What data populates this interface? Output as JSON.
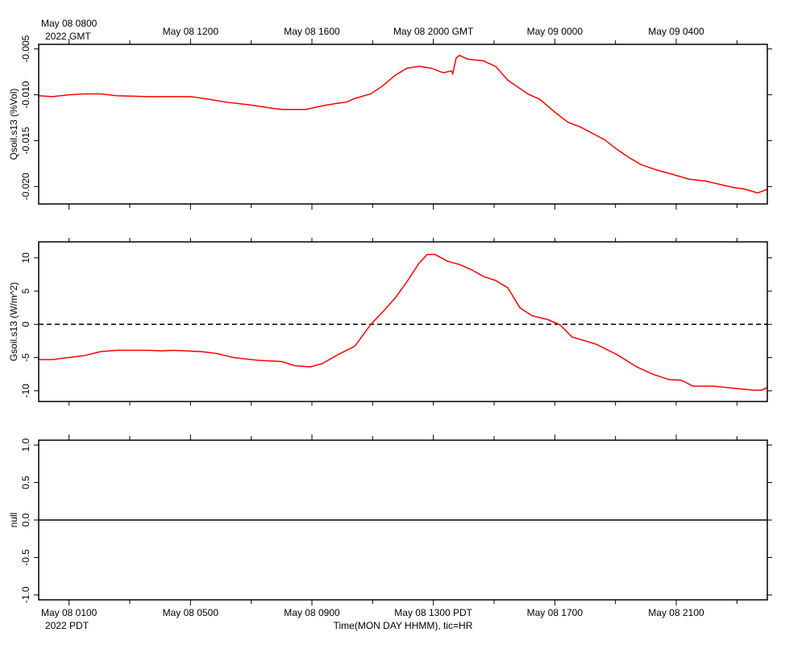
{
  "chart_data": [
    {
      "type": "line",
      "xlim": [
        7,
        31
      ],
      "ylim": [
        -0.0219,
        -0.0045
      ],
      "ylabel": "Qsoil.s13 (%Vol)",
      "corner_label": "2022 GMT",
      "xticks_side": "top",
      "xticks": [
        {
          "value": 8,
          "label": "May 08 0800"
        },
        {
          "value": 12,
          "label": "May 08 1200"
        },
        {
          "value": 16,
          "label": "May 08 1600"
        },
        {
          "value": 20,
          "label": "May 08 2000 GMT"
        },
        {
          "value": 24,
          "label": "May 09 0000"
        },
        {
          "value": 28,
          "label": "May 09 0400"
        }
      ],
      "xminorticks": [
        10,
        14,
        18,
        22,
        26,
        30
      ],
      "yticks": [
        {
          "value": -0.005,
          "label": "-0.005"
        },
        {
          "value": -0.01,
          "label": "-0.010"
        },
        {
          "value": -0.015,
          "label": "-0.015"
        },
        {
          "value": -0.02,
          "label": "-0.020"
        }
      ],
      "x": [
        7.0,
        7.45,
        7.98,
        8.51,
        9.04,
        9.57,
        10.64,
        12.02,
        12.63,
        13.16,
        13.96,
        14.75,
        15.02,
        15.81,
        16.34,
        16.88,
        17.14,
        17.41,
        17.94,
        18.34,
        18.73,
        19.13,
        19.53,
        19.93,
        20.33,
        20.59,
        20.64,
        20.75,
        20.86,
        21.12,
        21.65,
        22.05,
        22.45,
        23.11,
        23.51,
        24.04,
        24.44,
        24.84,
        25.24,
        25.64,
        26.03,
        26.43,
        26.83,
        27.36,
        28.02,
        28.42,
        28.95,
        29.48,
        29.88,
        30.28,
        30.68,
        31.0
      ],
      "series": [
        {
          "color": "#ff0000",
          "values": [
            -0.0101,
            -0.0102,
            -0.01,
            -0.0099,
            -0.0099,
            -0.0101,
            -0.0102,
            -0.0102,
            -0.0105,
            -0.0108,
            -0.0111,
            -0.0115,
            -0.0116,
            -0.0116,
            -0.0112,
            -0.0109,
            -0.0108,
            -0.0104,
            -0.0099,
            -0.009,
            -0.0079,
            -0.0071,
            -0.0069,
            -0.0071,
            -0.0076,
            -0.0074,
            -0.0077,
            -0.006,
            -0.0057,
            -0.0061,
            -0.0063,
            -0.0069,
            -0.0084,
            -0.0099,
            -0.0105,
            -0.012,
            -0.013,
            -0.0135,
            -0.0142,
            -0.0149,
            -0.0159,
            -0.0168,
            -0.0176,
            -0.0182,
            -0.0188,
            -0.0192,
            -0.0194,
            -0.0198,
            -0.0201,
            -0.0203,
            -0.0207,
            -0.0203
          ]
        }
      ]
    },
    {
      "type": "line",
      "xlim": [
        7,
        31
      ],
      "ylim": [
        -11.6,
        12.4
      ],
      "ylabel": "Gsoil.s13 (W/m^2)",
      "xminorticks": [
        8,
        10,
        12,
        14,
        16,
        18,
        20,
        22,
        24,
        26,
        28,
        30
      ],
      "yticks": [
        10,
        5,
        0,
        -5,
        -10
      ],
      "reference_line": {
        "value": 0,
        "style": "dashed"
      },
      "x": [
        7.0,
        7.45,
        7.98,
        8.51,
        9.04,
        9.57,
        10.64,
        11.04,
        11.43,
        12.36,
        12.89,
        13.42,
        14.22,
        15.02,
        15.42,
        15.95,
        16.34,
        16.88,
        17.41,
        17.94,
        18.34,
        18.73,
        19.13,
        19.53,
        19.8,
        20.06,
        20.46,
        20.86,
        21.26,
        21.65,
        22.05,
        22.45,
        22.85,
        23.25,
        23.78,
        24.18,
        24.57,
        25.37,
        26.03,
        26.7,
        27.23,
        27.76,
        28.16,
        28.56,
        29.22,
        29.88,
        30.55,
        30.81,
        31.0
      ],
      "series": [
        {
          "color": "#ff0000",
          "values": [
            -5.3,
            -5.3,
            -5.0,
            -4.7,
            -4.1,
            -3.9,
            -3.9,
            -4.0,
            -3.9,
            -4.1,
            -4.4,
            -5.0,
            -5.4,
            -5.6,
            -6.2,
            -6.4,
            -5.9,
            -4.5,
            -3.3,
            0.0,
            1.9,
            3.9,
            6.4,
            9.2,
            10.5,
            10.5,
            9.5,
            9.0,
            8.2,
            7.2,
            6.6,
            5.5,
            2.5,
            1.3,
            0.7,
            -0.1,
            -1.9,
            -3.0,
            -4.5,
            -6.4,
            -7.5,
            -8.3,
            -8.4,
            -9.3,
            -9.3,
            -9.6,
            -9.9,
            -9.9,
            -9.5
          ]
        }
      ]
    },
    {
      "type": "line",
      "xlim": [
        7,
        31
      ],
      "ylim": [
        -1.065,
        1.065
      ],
      "ylabel": "null",
      "corner_label": "2022 PDT",
      "xlabel": "Time(MON DAY HHMM), tic=HR",
      "xticks_side": "bottom",
      "xticks": [
        {
          "value": 8,
          "label": "May 08 0100"
        },
        {
          "value": 12,
          "label": "May 08 0500"
        },
        {
          "value": 16,
          "label": "May 08 0900"
        },
        {
          "value": 20,
          "label": "May 08 1300 PDT"
        },
        {
          "value": 24,
          "label": "May 08 1700"
        },
        {
          "value": 28,
          "label": "May 08 2100"
        }
      ],
      "xminorticks": [
        10,
        14,
        18,
        22,
        26,
        30
      ],
      "yticks": [
        {
          "value": 1,
          "label": "1.0"
        },
        0.5,
        {
          "value": 0,
          "label": "0.0"
        },
        -0.5,
        {
          "value": -1,
          "label": "-1.0"
        }
      ],
      "reference_line": {
        "value": 0,
        "style": "solid"
      },
      "x": [],
      "series": []
    }
  ]
}
